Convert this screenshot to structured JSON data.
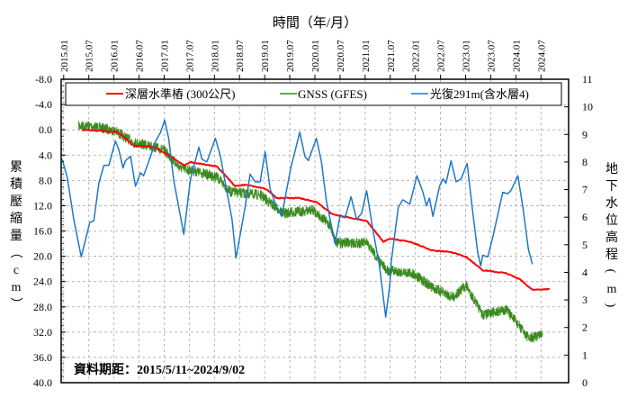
{
  "chart_data": {
    "type": "line",
    "title": "",
    "xlabel": "時間（年/月）",
    "ylabel_left": "累積壓縮量（cm）",
    "ylabel_right": "地下水位高程(m)",
    "x_ticks": [
      "2015.01",
      "2015.07",
      "2016.01",
      "2016.07",
      "2017.01",
      "2017.07",
      "2018.01",
      "2018.07",
      "2019.01",
      "2019.07",
      "2020.01",
      "2020.07",
      "2021.01",
      "2021.07",
      "2022.01",
      "2022.07",
      "2023.01",
      "2023.07",
      "2024.01",
      "2024.07"
    ],
    "y_left_ticks": [
      "-8.0",
      "-4.0",
      "0.0",
      "4.0",
      "8.0",
      "12.0",
      "16.0",
      "20.0",
      "24.0",
      "28.0",
      "32.0",
      "36.0",
      "40.0"
    ],
    "y_right_ticks": [
      "11",
      "10",
      "9",
      "8",
      "7",
      "6",
      "5",
      "4",
      "3",
      "2",
      "1",
      "0"
    ],
    "xlim": [
      2014.95,
      2025.05
    ],
    "ylim_left": [
      -8,
      40
    ],
    "ylim_left_inverted": true,
    "ylim_right": [
      0,
      11
    ],
    "grid": true,
    "legend_position": "top",
    "annotation": "資料期距：2015/5/11~2024/9/02",
    "series": [
      {
        "name": "深層水準樁 (300公尺)",
        "axis": "left",
        "color": "#ff0000",
        "points": [
          [
            2015.36,
            0.0
          ],
          [
            2015.67,
            0.1
          ],
          [
            2016.07,
            0.35
          ],
          [
            2016.4,
            2.5
          ],
          [
            2016.79,
            2.7
          ],
          [
            2017.12,
            4.15
          ],
          [
            2017.39,
            5.6
          ],
          [
            2017.52,
            5.1
          ],
          [
            2018.05,
            5.8
          ],
          [
            2018.41,
            8.9
          ],
          [
            2018.64,
            8.7
          ],
          [
            2019.04,
            9.4
          ],
          [
            2019.24,
            10.8
          ],
          [
            2019.7,
            10.8
          ],
          [
            2020.04,
            11.5
          ],
          [
            2020.36,
            13.4
          ],
          [
            2021.03,
            14.4
          ],
          [
            2021.36,
            17.7
          ],
          [
            2021.49,
            17.2
          ],
          [
            2021.89,
            17.7
          ],
          [
            2022.35,
            19.1
          ],
          [
            2022.68,
            19.3
          ],
          [
            2023.01,
            20.1
          ],
          [
            2023.34,
            22.2
          ],
          [
            2023.81,
            22.7
          ],
          [
            2024.07,
            23.6
          ],
          [
            2024.33,
            25.3
          ],
          [
            2024.67,
            25.2
          ]
        ]
      },
      {
        "name": "GNSS (GFES)",
        "axis": "left",
        "color": "#3a8a1e",
        "points": [
          [
            2015.3,
            -0.6
          ],
          [
            2015.54,
            -0.6
          ],
          [
            2016.0,
            0.1
          ],
          [
            2016.4,
            2.0
          ],
          [
            2016.79,
            2.7
          ],
          [
            2016.99,
            3.2
          ],
          [
            2017.32,
            6.05
          ],
          [
            2017.59,
            6.5
          ],
          [
            2018.05,
            7.5
          ],
          [
            2018.32,
            9.85
          ],
          [
            2018.91,
            10.3
          ],
          [
            2019.37,
            13.2
          ],
          [
            2019.97,
            12.7
          ],
          [
            2020.3,
            15.1
          ],
          [
            2020.43,
            17.9
          ],
          [
            2021.03,
            17.9
          ],
          [
            2021.29,
            20.8
          ],
          [
            2021.42,
            22.2
          ],
          [
            2021.95,
            22.7
          ],
          [
            2022.35,
            25.0
          ],
          [
            2022.75,
            26.5
          ],
          [
            2023.01,
            24.6
          ],
          [
            2023.34,
            29.3
          ],
          [
            2023.81,
            28.4
          ],
          [
            2024.27,
            33.1
          ],
          [
            2024.53,
            32.2
          ]
        ]
      },
      {
        "name": "光復291m(含水層4)",
        "axis": "right",
        "color": "#1f78c8",
        "points": [
          [
            2014.97,
            8.1
          ],
          [
            2015.07,
            7.45
          ],
          [
            2015.2,
            5.92
          ],
          [
            2015.35,
            4.56
          ],
          [
            2015.52,
            5.81
          ],
          [
            2015.6,
            5.87
          ],
          [
            2015.7,
            7.23
          ],
          [
            2015.8,
            7.88
          ],
          [
            2015.9,
            7.88
          ],
          [
            2016.03,
            8.76
          ],
          [
            2016.1,
            8.43
          ],
          [
            2016.18,
            7.78
          ],
          [
            2016.23,
            8.05
          ],
          [
            2016.33,
            8.21
          ],
          [
            2016.43,
            7.12
          ],
          [
            2016.53,
            7.61
          ],
          [
            2016.59,
            7.5
          ],
          [
            2016.73,
            8.21
          ],
          [
            2016.83,
            8.76
          ],
          [
            2016.93,
            9.08
          ],
          [
            2017.01,
            9.52
          ],
          [
            2017.09,
            8.86
          ],
          [
            2017.19,
            7.34
          ],
          [
            2017.29,
            6.36
          ],
          [
            2017.39,
            5.38
          ],
          [
            2017.52,
            7.34
          ],
          [
            2017.69,
            8.54
          ],
          [
            2017.75,
            8.1
          ],
          [
            2017.85,
            8.0
          ],
          [
            2018.02,
            8.86
          ],
          [
            2018.12,
            8.21
          ],
          [
            2018.25,
            6.9
          ],
          [
            2018.35,
            5.92
          ],
          [
            2018.43,
            4.51
          ],
          [
            2018.61,
            6.36
          ],
          [
            2018.71,
            7.56
          ],
          [
            2018.81,
            7.28
          ],
          [
            2018.91,
            7.28
          ],
          [
            2019.01,
            8.37
          ],
          [
            2019.11,
            7.01
          ],
          [
            2019.24,
            6.36
          ],
          [
            2019.34,
            6.03
          ],
          [
            2019.44,
            7.01
          ],
          [
            2019.52,
            7.78
          ],
          [
            2019.7,
            9.08
          ],
          [
            2019.8,
            8.21
          ],
          [
            2019.87,
            8.05
          ],
          [
            2020.03,
            8.86
          ],
          [
            2020.13,
            8.0
          ],
          [
            2020.23,
            6.58
          ],
          [
            2020.4,
            5.05
          ],
          [
            2020.5,
            6.03
          ],
          [
            2020.6,
            5.98
          ],
          [
            2020.72,
            6.74
          ],
          [
            2020.83,
            5.92
          ],
          [
            2020.93,
            6.14
          ],
          [
            2021.03,
            6.96
          ],
          [
            2021.16,
            5.49
          ],
          [
            2021.29,
            4.18
          ],
          [
            2021.41,
            2.38
          ],
          [
            2021.49,
            3.53
          ],
          [
            2021.52,
            4.4
          ],
          [
            2021.66,
            6.36
          ],
          [
            2021.75,
            6.63
          ],
          [
            2021.89,
            6.47
          ],
          [
            2022.03,
            7.5
          ],
          [
            2022.15,
            6.9
          ],
          [
            2022.22,
            6.41
          ],
          [
            2022.28,
            6.69
          ],
          [
            2022.35,
            6.03
          ],
          [
            2022.48,
            7.12
          ],
          [
            2022.55,
            7.39
          ],
          [
            2022.61,
            7.23
          ],
          [
            2022.71,
            8.05
          ],
          [
            2022.81,
            7.28
          ],
          [
            2022.91,
            7.39
          ],
          [
            2023.03,
            7.94
          ],
          [
            2023.13,
            6.36
          ],
          [
            2023.24,
            4.73
          ],
          [
            2023.3,
            4.23
          ],
          [
            2023.34,
            4.62
          ],
          [
            2023.44,
            4.56
          ],
          [
            2023.54,
            5.27
          ],
          [
            2023.74,
            6.9
          ],
          [
            2023.84,
            6.85
          ],
          [
            2023.9,
            6.96
          ],
          [
            2024.04,
            7.5
          ],
          [
            2024.14,
            6.36
          ],
          [
            2024.25,
            4.83
          ],
          [
            2024.33,
            4.29
          ]
        ]
      }
    ]
  }
}
